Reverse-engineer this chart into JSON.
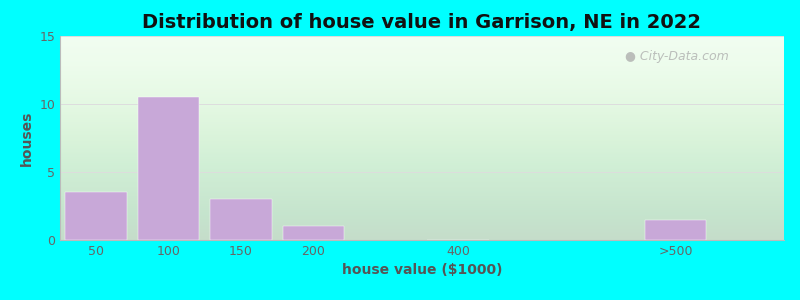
{
  "title": "Distribution of house value in Garrison, NE in 2022",
  "xlabel": "house value ($1000)",
  "ylabel": "houses",
  "bar_labels": [
    "50",
    "100",
    "150",
    "200",
    "400",
    ">500"
  ],
  "bar_values": [
    3.5,
    10.5,
    3.0,
    1.0,
    0.0,
    1.5
  ],
  "bar_color": "#c8a8d8",
  "ylim": [
    0,
    15
  ],
  "yticks": [
    0,
    5,
    10,
    15
  ],
  "background_outer": "#00ffff",
  "title_fontsize": 14,
  "axis_label_fontsize": 10,
  "tick_fontsize": 9,
  "watermark_text": "City-Data.com",
  "bar_positions": [
    0,
    1,
    2,
    3,
    5,
    8
  ],
  "bar_width": 0.85,
  "xlim": [
    -0.5,
    9.5
  ]
}
